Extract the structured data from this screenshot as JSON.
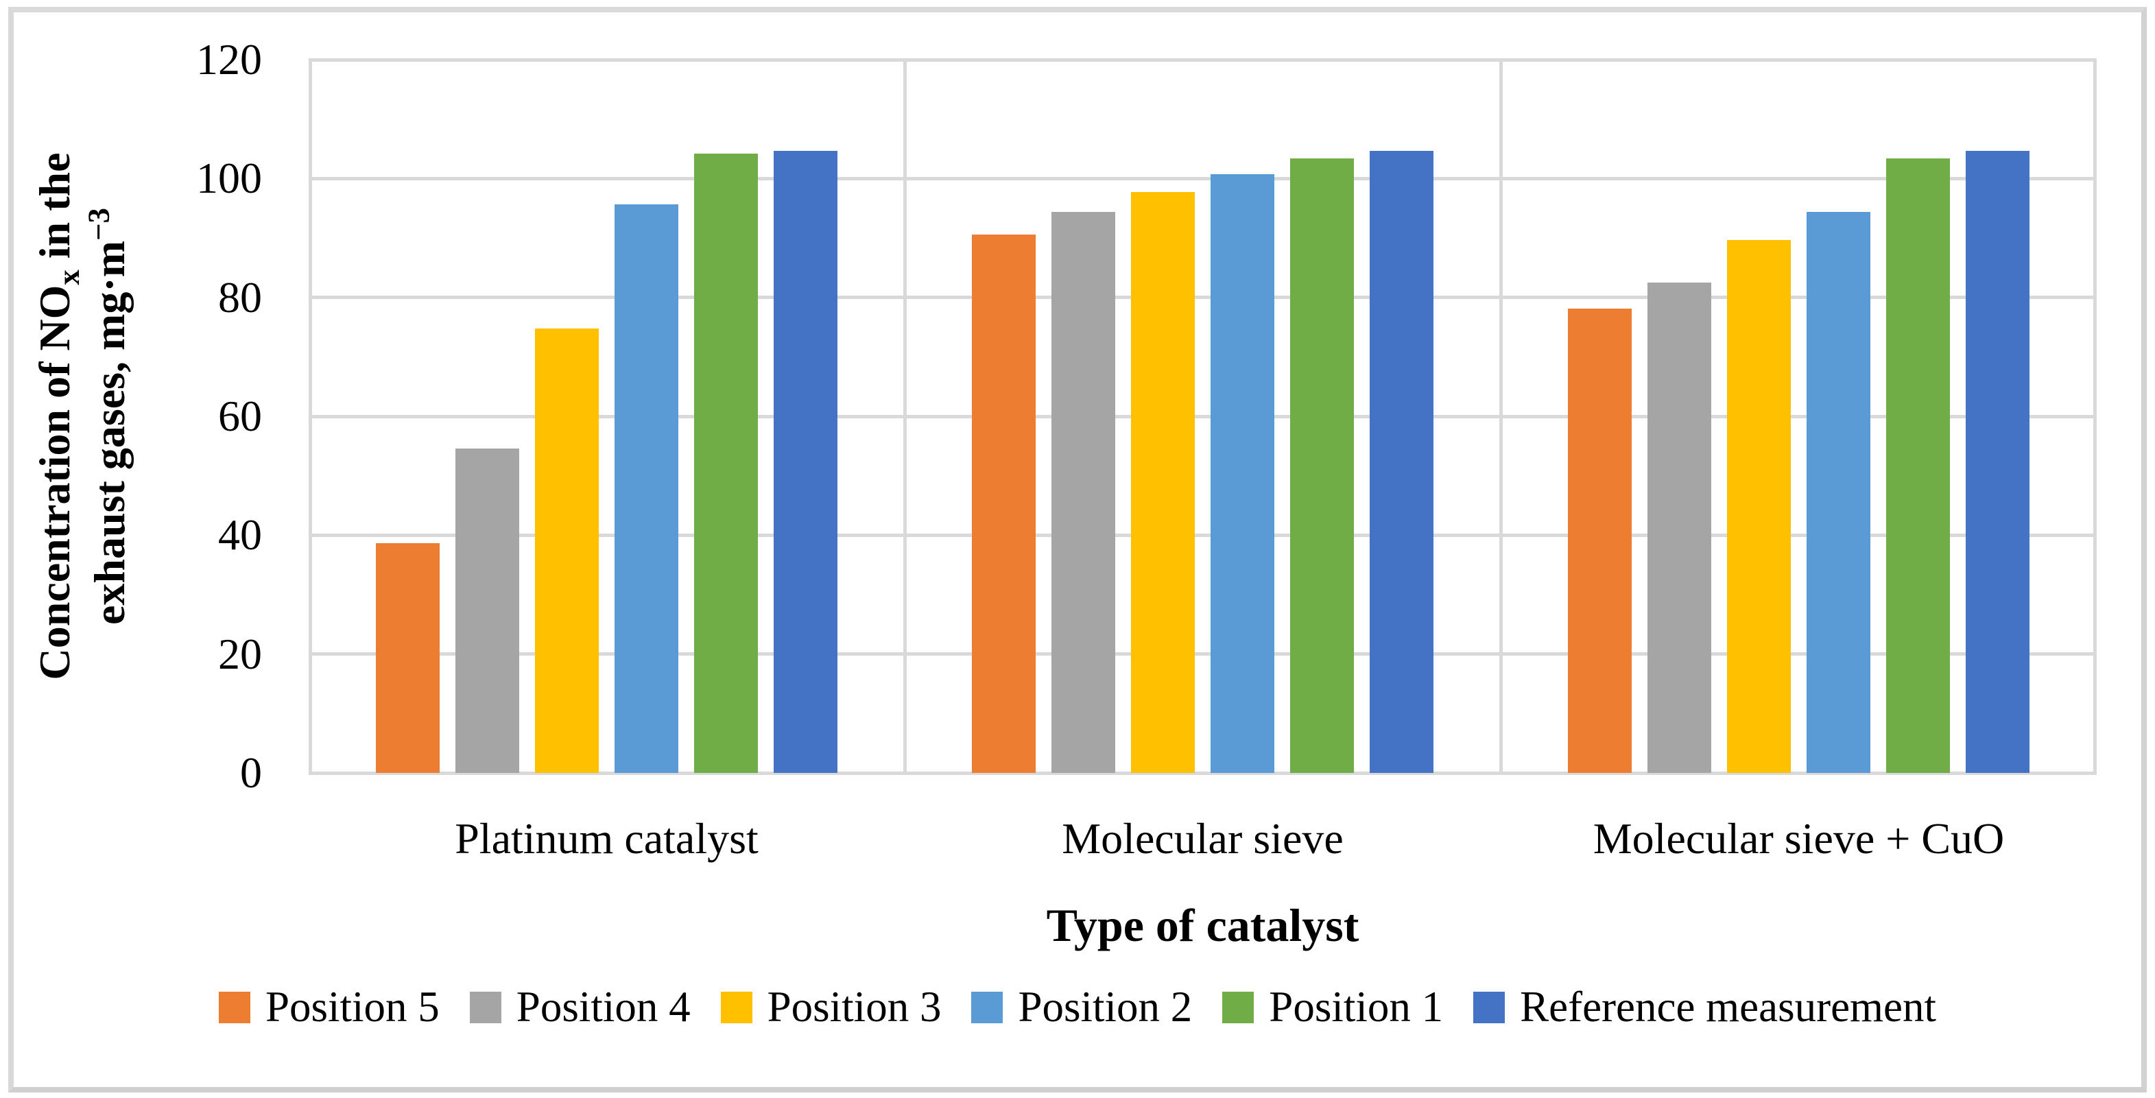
{
  "chart_data": {
    "type": "bar",
    "categories": [
      "Platinum catalyst",
      "Molecular sieve",
      "Molecular sieve + CuO"
    ],
    "series": [
      {
        "name": "Position 5",
        "color": "#ED7D31",
        "values": [
          38.7,
          90.6,
          78.1
        ]
      },
      {
        "name": "Position 4",
        "color": "#A5A5A5",
        "values": [
          54.6,
          94.4,
          82.5
        ]
      },
      {
        "name": "Position 3",
        "color": "#FFC000",
        "values": [
          74.8,
          97.7,
          89.6
        ]
      },
      {
        "name": "Position 2",
        "color": "#5B9BD5",
        "values": [
          95.6,
          100.7,
          94.4
        ]
      },
      {
        "name": "Position 1",
        "color": "#70AD47",
        "values": [
          104.2,
          103.4,
          103.4
        ]
      },
      {
        "name": "Reference measurement",
        "color": "#4472C4",
        "values": [
          104.7,
          104.7,
          104.7
        ]
      }
    ],
    "xlabel": "Type of catalyst",
    "ylabel": {
      "line1_pre": "Concentration of NO",
      "line1_sub": "x",
      "line1_post": " in the",
      "line2_pre": "exhaust gases, mg·m",
      "line2_sup": "−3"
    },
    "ylim": [
      0,
      120
    ],
    "yticks": [
      0,
      20,
      40,
      60,
      80,
      100,
      120
    ],
    "grid": "horizontal-major with category separator lines and full plot border",
    "gridline_color": "#D9D9D9",
    "legend_position": "bottom",
    "figure_border_color": "#D9D9D9",
    "background_color": "#FFFFFF"
  }
}
